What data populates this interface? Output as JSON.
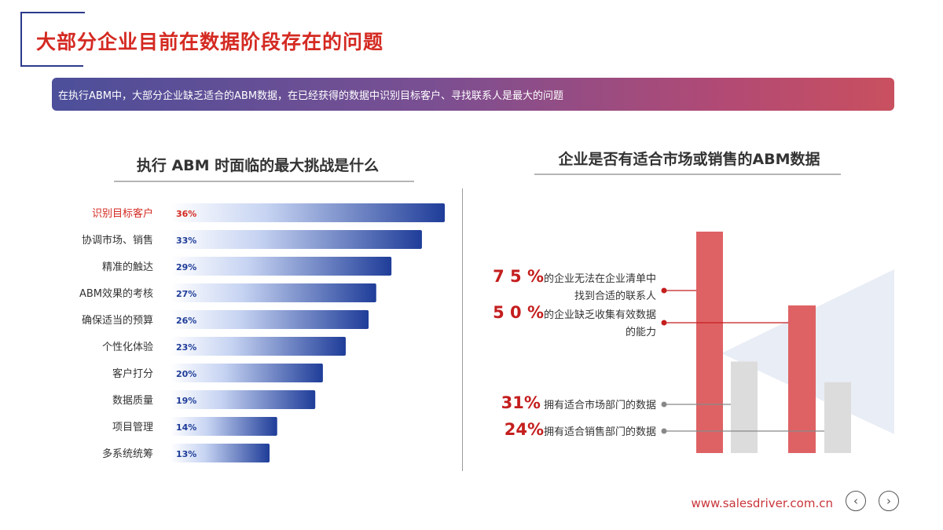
{
  "page": {
    "title": "大部分企业目前在数据阶段存在的问题",
    "banner": "在执行ABM中，大部分企业缺乏适合的ABM数据，在已经获得的数据中识别目标客户、寻找联系人是最大的问题",
    "footer_url": "www.salesdriver.com.cn",
    "prev_icon": "chevron-left-icon",
    "next_icon": "chevron-right-icon",
    "prev_glyph": "‹",
    "next_glyph": "›"
  },
  "chart_data": [
    {
      "type": "bar",
      "orientation": "horizontal",
      "title": "执行 ABM 时面临的最大挑战是什么",
      "categories": [
        "识别目标客户",
        "协调市场、销售",
        "精准的触达",
        "ABM效果的考核",
        "确保适当的预算",
        "个性化体验",
        "客户打分",
        "数据质量",
        "项目管理",
        "多系统统筹"
      ],
      "values": [
        36,
        33,
        29,
        27,
        26,
        23,
        20,
        19,
        14,
        13
      ],
      "value_labels": [
        "36%",
        "33%",
        "29%",
        "27%",
        "26%",
        "23%",
        "20%",
        "19%",
        "14%",
        "13%"
      ],
      "highlight_index": 0,
      "colors": {
        "highlight_label": "#d42a22",
        "label": "#333333",
        "value_label": "#1f3d99",
        "bar_start": "#ffffff",
        "bar_end": "#1f3d99",
        "highlight_value": "#d42a22"
      }
    },
    {
      "type": "bar",
      "title": "企业是否有适合市场或销售的ABM数据",
      "values": [
        75,
        31,
        50,
        24
      ],
      "colors": {
        "primary": "#de6264",
        "secondary": "#dcdcdc",
        "callout_red": "#c41e1e",
        "callout_grey": "#888888",
        "triangle": "#e9edf5"
      },
      "annotations": [
        {
          "value": "7 5 %",
          "text": "的企业无法在企业清单中",
          "text2": "找到合适的联系人"
        },
        {
          "value": "5 0 %",
          "text": "的企业缺乏收集有效数据",
          "text2": "的能力"
        },
        {
          "value": "31%",
          "text": " 拥有适合市场部门的数据",
          "text2": ""
        },
        {
          "value": "24%",
          "text": "拥有适合销售部门的数据",
          "text2": ""
        }
      ]
    }
  ]
}
